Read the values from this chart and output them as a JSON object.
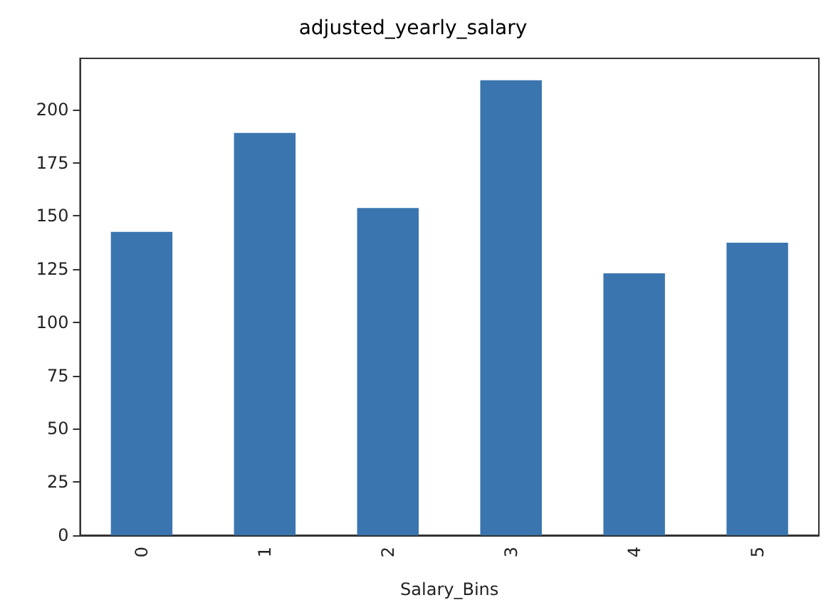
{
  "chart_data": {
    "type": "bar",
    "title": "adjusted_yearly_salary",
    "xlabel": "Salary_Bins",
    "categories": [
      "0",
      "1",
      "2",
      "3",
      "4",
      "5"
    ],
    "values": [
      142.5,
      189,
      153.7,
      213.7,
      123,
      137.4
    ],
    "color": "#3a75af",
    "ylim": [
      0,
      224
    ],
    "yticks": [
      0,
      25,
      50,
      75,
      100,
      125,
      150,
      175,
      200
    ],
    "grid": false
  }
}
